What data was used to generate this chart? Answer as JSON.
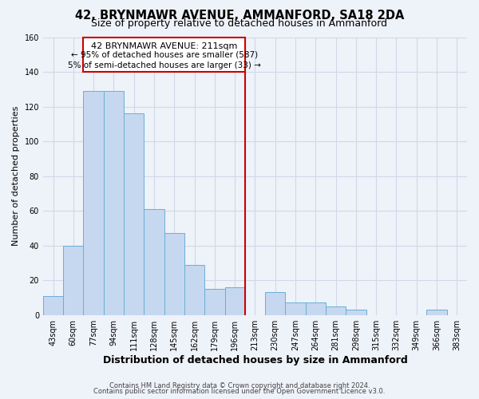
{
  "title": "42, BRYNMAWR AVENUE, AMMANFORD, SA18 2DA",
  "subtitle": "Size of property relative to detached houses in Ammanford",
  "xlabel": "Distribution of detached houses by size in Ammanford",
  "ylabel": "Number of detached properties",
  "bin_labels": [
    "43sqm",
    "60sqm",
    "77sqm",
    "94sqm",
    "111sqm",
    "128sqm",
    "145sqm",
    "162sqm",
    "179sqm",
    "196sqm",
    "213sqm",
    "230sqm",
    "247sqm",
    "264sqm",
    "281sqm",
    "298sqm",
    "315sqm",
    "332sqm",
    "349sqm",
    "366sqm",
    "383sqm"
  ],
  "bar_heights": [
    11,
    40,
    129,
    129,
    116,
    61,
    47,
    29,
    15,
    16,
    0,
    13,
    7,
    7,
    5,
    3,
    0,
    0,
    0,
    3,
    0
  ],
  "bar_color": "#c5d8ef",
  "bar_edge_color": "#6baed6",
  "ylim": [
    0,
    160
  ],
  "yticks": [
    0,
    20,
    40,
    60,
    80,
    100,
    120,
    140,
    160
  ],
  "vline_x_index": 10,
  "annotation_title": "42 BRYNMAWR AVENUE: 211sqm",
  "annotation_line1": "← 95% of detached houses are smaller (587)",
  "annotation_line2": "5% of semi-detached houses are larger (33) →",
  "annotation_box_color": "#ffffff",
  "annotation_border_color": "#cc0000",
  "vline_color": "#cc0000",
  "footer_line1": "Contains HM Land Registry data © Crown copyright and database right 2024.",
  "footer_line2": "Contains public sector information licensed under the Open Government Licence v3.0.",
  "background_color": "#eef2f9",
  "grid_color": "#d0d8e8",
  "title_fontsize": 10.5,
  "subtitle_fontsize": 9,
  "xlabel_fontsize": 9,
  "ylabel_fontsize": 8,
  "tick_fontsize": 7,
  "footer_fontsize": 6,
  "ann_title_fontsize": 8,
  "ann_text_fontsize": 7.5
}
